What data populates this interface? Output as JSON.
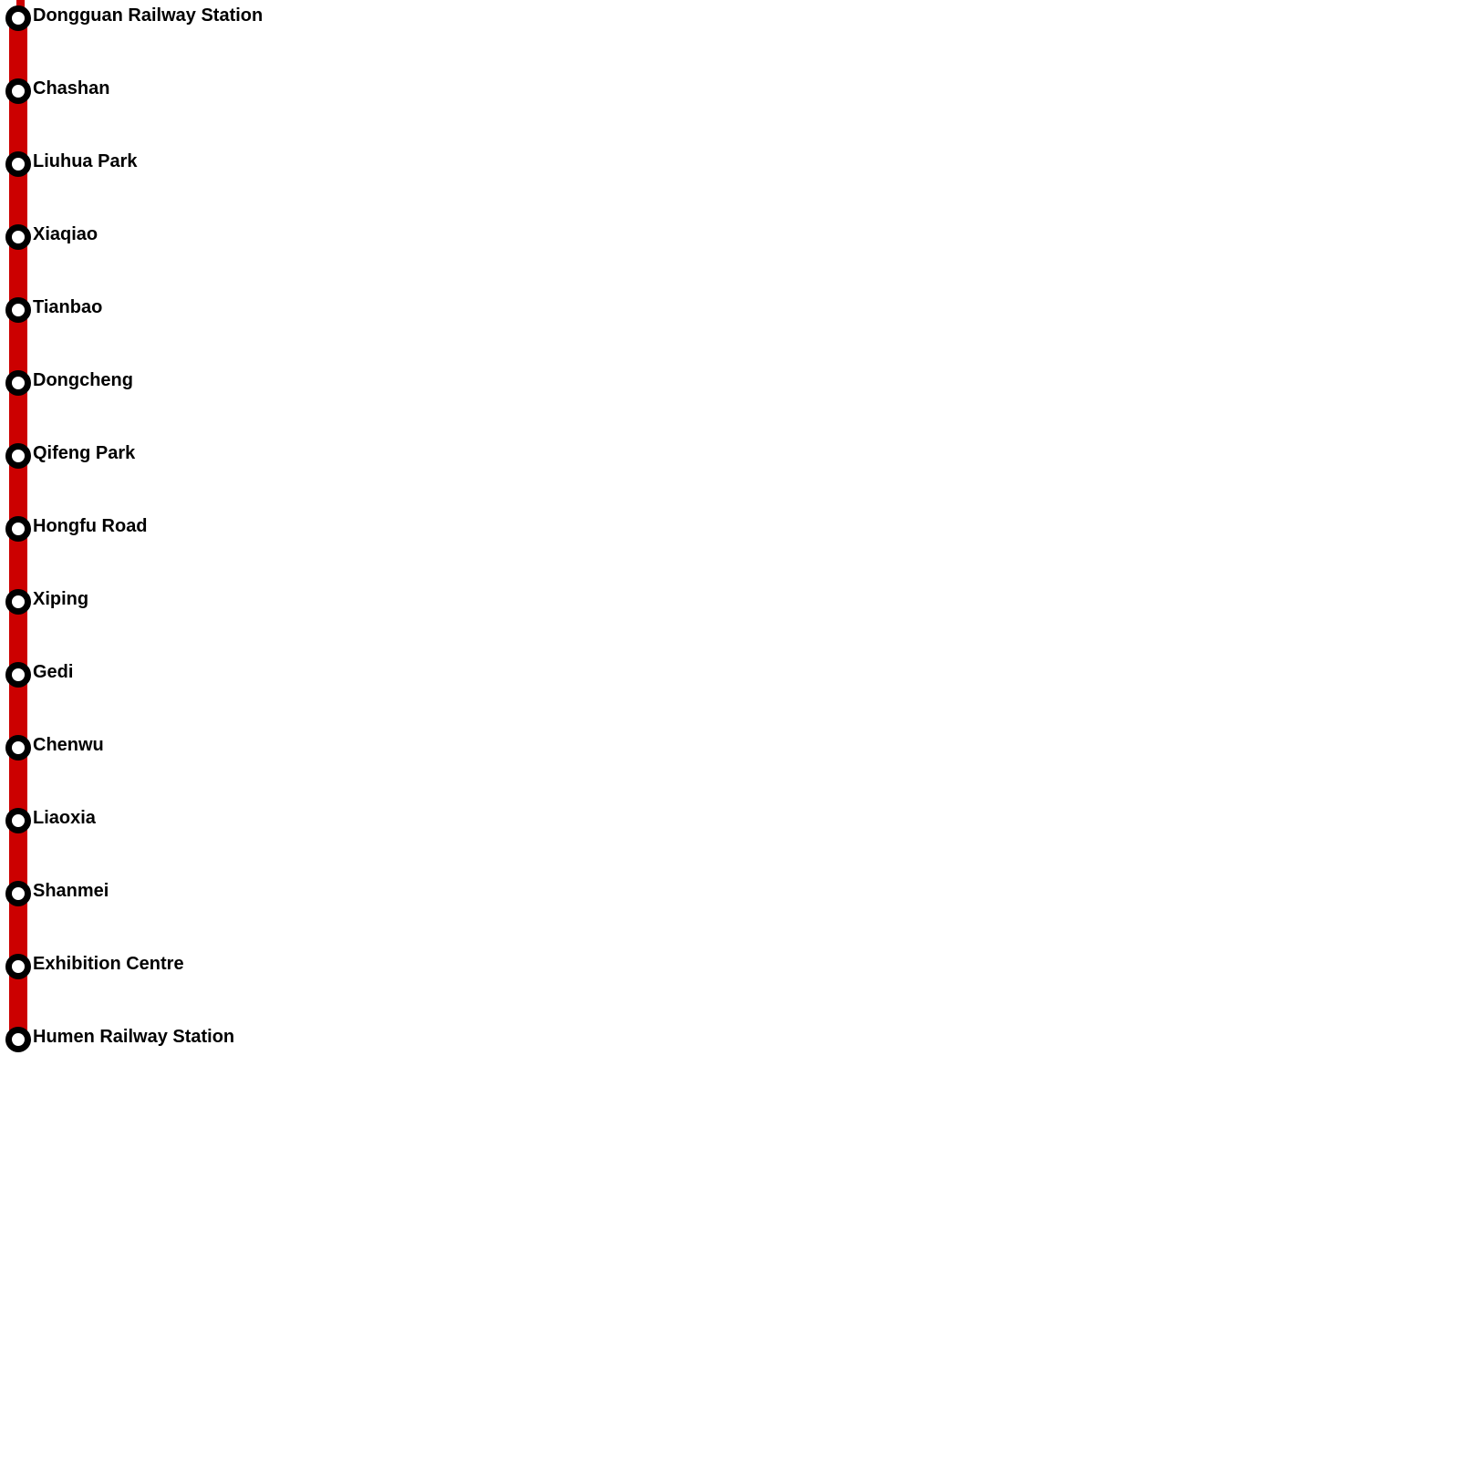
{
  "map": {
    "line_color": "#CC0000",
    "marker_ring_color": "#000000",
    "marker_fill_color": "#FFFFFF",
    "label_color": "#000000",
    "stations": [
      {
        "name": "Dongguan Railway Station"
      },
      {
        "name": "Chashan"
      },
      {
        "name": "Liuhua Park"
      },
      {
        "name": "Xiaqiao"
      },
      {
        "name": "Tianbao"
      },
      {
        "name": "Dongcheng"
      },
      {
        "name": "Qifeng Park"
      },
      {
        "name": "Hongfu Road"
      },
      {
        "name": "Xiping"
      },
      {
        "name": "Gedi"
      },
      {
        "name": "Chenwu"
      },
      {
        "name": "Liaoxia"
      },
      {
        "name": "Shanmei"
      },
      {
        "name": "Exhibition Centre"
      },
      {
        "name": "Humen Railway Station"
      }
    ]
  }
}
